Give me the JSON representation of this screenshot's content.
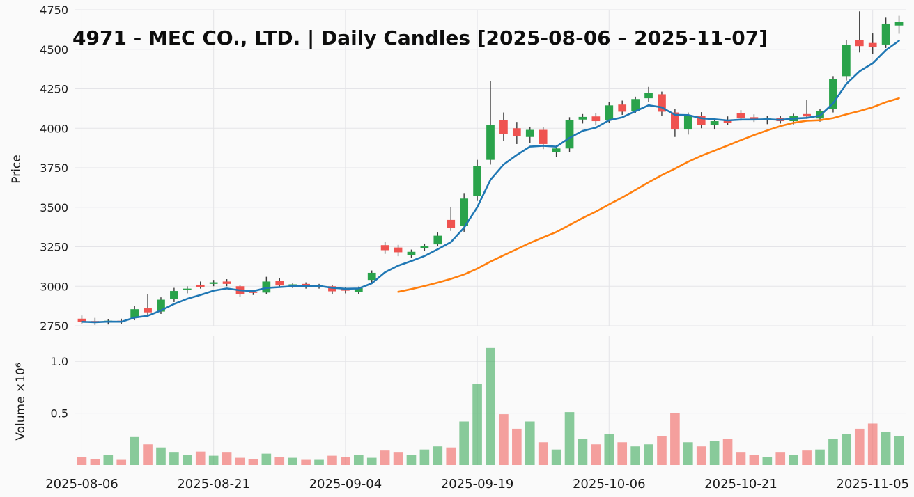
{
  "title": "4971 - MEC CO., LTD. | Daily Candles [2025-08-06 – 2025-11-07]",
  "price_axis": {
    "label": "Price",
    "min": 2750,
    "max": 4750,
    "ticks": [
      2750,
      3000,
      3250,
      3500,
      3750,
      4000,
      4250,
      4500,
      4750
    ]
  },
  "volume_axis": {
    "label": "Volume ×10⁶",
    "min": 0,
    "max": 1.25,
    "ticks": [
      0.5,
      1.0
    ]
  },
  "x_axis": {
    "tick_labels": [
      "2025-08-06",
      "2025-08-21",
      "2025-09-04",
      "2025-09-19",
      "2025-10-06",
      "2025-10-21",
      "2025-11-05"
    ],
    "tick_indices": [
      0,
      10,
      20,
      30,
      40,
      50,
      60
    ]
  },
  "colors": {
    "up": "#2aa34b",
    "down": "#ef5350",
    "ma_short": "#1f77b4",
    "ma_long": "#ff7f0e",
    "grid": "#e4e4e8",
    "wick": "#3c3c3c",
    "tick_text": "#1a1a1a",
    "background": "#fafafa"
  },
  "chart_data": {
    "type": "candlestick-with-volume",
    "title": "4971 - MEC CO., LTD. | Daily Candles [2025-08-06 – 2025-11-07]",
    "ylabel": "Price",
    "ylabel_lower": "Volume ×10⁶",
    "price_range": [
      2750,
      4750
    ],
    "volume_unit": "millions",
    "dates": [
      "2025-08-06",
      "2025-08-07",
      "2025-08-08",
      "2025-08-12",
      "2025-08-13",
      "2025-08-14",
      "2025-08-15",
      "2025-08-18",
      "2025-08-19",
      "2025-08-20",
      "2025-08-21",
      "2025-08-22",
      "2025-08-25",
      "2025-08-26",
      "2025-08-27",
      "2025-08-28",
      "2025-08-29",
      "2025-09-01",
      "2025-09-02",
      "2025-09-03",
      "2025-09-04",
      "2025-09-05",
      "2025-09-08",
      "2025-09-09",
      "2025-09-10",
      "2025-09-11",
      "2025-09-12",
      "2025-09-16",
      "2025-09-17",
      "2025-09-18",
      "2025-09-19",
      "2025-09-22",
      "2025-09-24",
      "2025-09-25",
      "2025-09-26",
      "2025-09-29",
      "2025-09-30",
      "2025-10-01",
      "2025-10-02",
      "2025-10-03",
      "2025-10-06",
      "2025-10-07",
      "2025-10-08",
      "2025-10-09",
      "2025-10-10",
      "2025-10-14",
      "2025-10-15",
      "2025-10-16",
      "2025-10-17",
      "2025-10-20",
      "2025-10-21",
      "2025-10-22",
      "2025-10-23",
      "2025-10-24",
      "2025-10-27",
      "2025-10-28",
      "2025-10-29",
      "2025-10-30",
      "2025-10-31",
      "2025-11-04",
      "2025-11-05",
      "2025-11-06",
      "2025-11-07"
    ],
    "ohlc": [
      [
        2795,
        2815,
        2760,
        2775
      ],
      [
        2780,
        2800,
        2755,
        2768
      ],
      [
        2770,
        2790,
        2758,
        2782
      ],
      [
        2782,
        2795,
        2762,
        2775
      ],
      [
        2800,
        2875,
        2785,
        2855
      ],
      [
        2860,
        2950,
        2815,
        2835
      ],
      [
        2840,
        2930,
        2825,
        2915
      ],
      [
        2920,
        2990,
        2900,
        2970
      ],
      [
        2975,
        3000,
        2955,
        2985
      ],
      [
        3010,
        3030,
        2985,
        2995
      ],
      [
        3015,
        3040,
        3000,
        3025
      ],
      [
        3030,
        3045,
        3000,
        3015
      ],
      [
        3000,
        3010,
        2935,
        2950
      ],
      [
        2965,
        2978,
        2945,
        2958
      ],
      [
        2960,
        3060,
        2950,
        3030
      ],
      [
        3035,
        3050,
        2990,
        3005
      ],
      [
        3000,
        3022,
        2988,
        3012
      ],
      [
        3015,
        3025,
        2985,
        3000
      ],
      [
        2995,
        3015,
        2985,
        3005
      ],
      [
        3000,
        3010,
        2950,
        2968
      ],
      [
        2985,
        2996,
        2955,
        2972
      ],
      [
        2965,
        2998,
        2952,
        2988
      ],
      [
        3040,
        3100,
        3020,
        3085
      ],
      [
        3260,
        3280,
        3205,
        3228
      ],
      [
        3245,
        3262,
        3190,
        3215
      ],
      [
        3195,
        3232,
        3180,
        3218
      ],
      [
        3240,
        3270,
        3225,
        3255
      ],
      [
        3265,
        3340,
        3255,
        3320
      ],
      [
        3420,
        3500,
        3350,
        3368
      ],
      [
        3380,
        3590,
        3345,
        3555
      ],
      [
        3570,
        3800,
        3540,
        3760
      ],
      [
        3800,
        4300,
        3770,
        4020
      ],
      [
        4050,
        4100,
        3920,
        3965
      ],
      [
        4000,
        4040,
        3900,
        3950
      ],
      [
        3945,
        4010,
        3905,
        3990
      ],
      [
        3990,
        4010,
        3868,
        3900
      ],
      [
        3850,
        3895,
        3820,
        3872
      ],
      [
        3872,
        4070,
        3850,
        4050
      ],
      [
        4055,
        4090,
        4030,
        4072
      ],
      [
        4075,
        4095,
        4018,
        4045
      ],
      [
        4050,
        4165,
        4035,
        4145
      ],
      [
        4150,
        4175,
        4085,
        4105
      ],
      [
        4110,
        4200,
        4095,
        4185
      ],
      [
        4190,
        4262,
        4165,
        4222
      ],
      [
        4215,
        4232,
        4080,
        4105
      ],
      [
        4100,
        4122,
        3945,
        3992
      ],
      [
        3992,
        4100,
        3960,
        4080
      ],
      [
        4080,
        4102,
        4000,
        4022
      ],
      [
        4022,
        4062,
        3992,
        4045
      ],
      [
        4052,
        4075,
        4020,
        4035
      ],
      [
        4095,
        4115,
        4048,
        4065
      ],
      [
        4070,
        4088,
        4040,
        4055
      ],
      [
        4050,
        4076,
        4026,
        4062
      ],
      [
        4065,
        4080,
        4030,
        4045
      ],
      [
        4045,
        4092,
        4025,
        4078
      ],
      [
        4090,
        4180,
        4060,
        4075
      ],
      [
        4062,
        4122,
        4042,
        4108
      ],
      [
        4120,
        4330,
        4100,
        4312
      ],
      [
        4330,
        4560,
        4302,
        4528
      ],
      [
        4560,
        4740,
        4480,
        4520
      ],
      [
        4540,
        4600,
        4470,
        4512
      ],
      [
        4530,
        4700,
        4508,
        4662
      ],
      [
        4650,
        4712,
        4598,
        4672
      ]
    ],
    "volume": [
      0.08,
      0.06,
      0.1,
      0.05,
      0.27,
      0.2,
      0.17,
      0.12,
      0.1,
      0.13,
      0.09,
      0.12,
      0.07,
      0.06,
      0.11,
      0.08,
      0.07,
      0.05,
      0.05,
      0.09,
      0.08,
      0.1,
      0.07,
      0.14,
      0.12,
      0.1,
      0.15,
      0.18,
      0.17,
      0.42,
      0.78,
      1.13,
      0.49,
      0.35,
      0.42,
      0.22,
      0.15,
      0.51,
      0.25,
      0.2,
      0.3,
      0.22,
      0.18,
      0.2,
      0.28,
      0.5,
      0.22,
      0.18,
      0.23,
      0.25,
      0.12,
      0.1,
      0.08,
      0.12,
      0.1,
      0.14,
      0.15,
      0.25,
      0.3,
      0.35,
      0.4,
      0.32,
      0.28
    ],
    "overlays": [
      {
        "name": "ma-short",
        "type": "ema",
        "window": 5,
        "color": "#1f77b4"
      },
      {
        "name": "ma-long",
        "type": "sma",
        "window": 25,
        "color": "#ff7f0e"
      }
    ]
  }
}
